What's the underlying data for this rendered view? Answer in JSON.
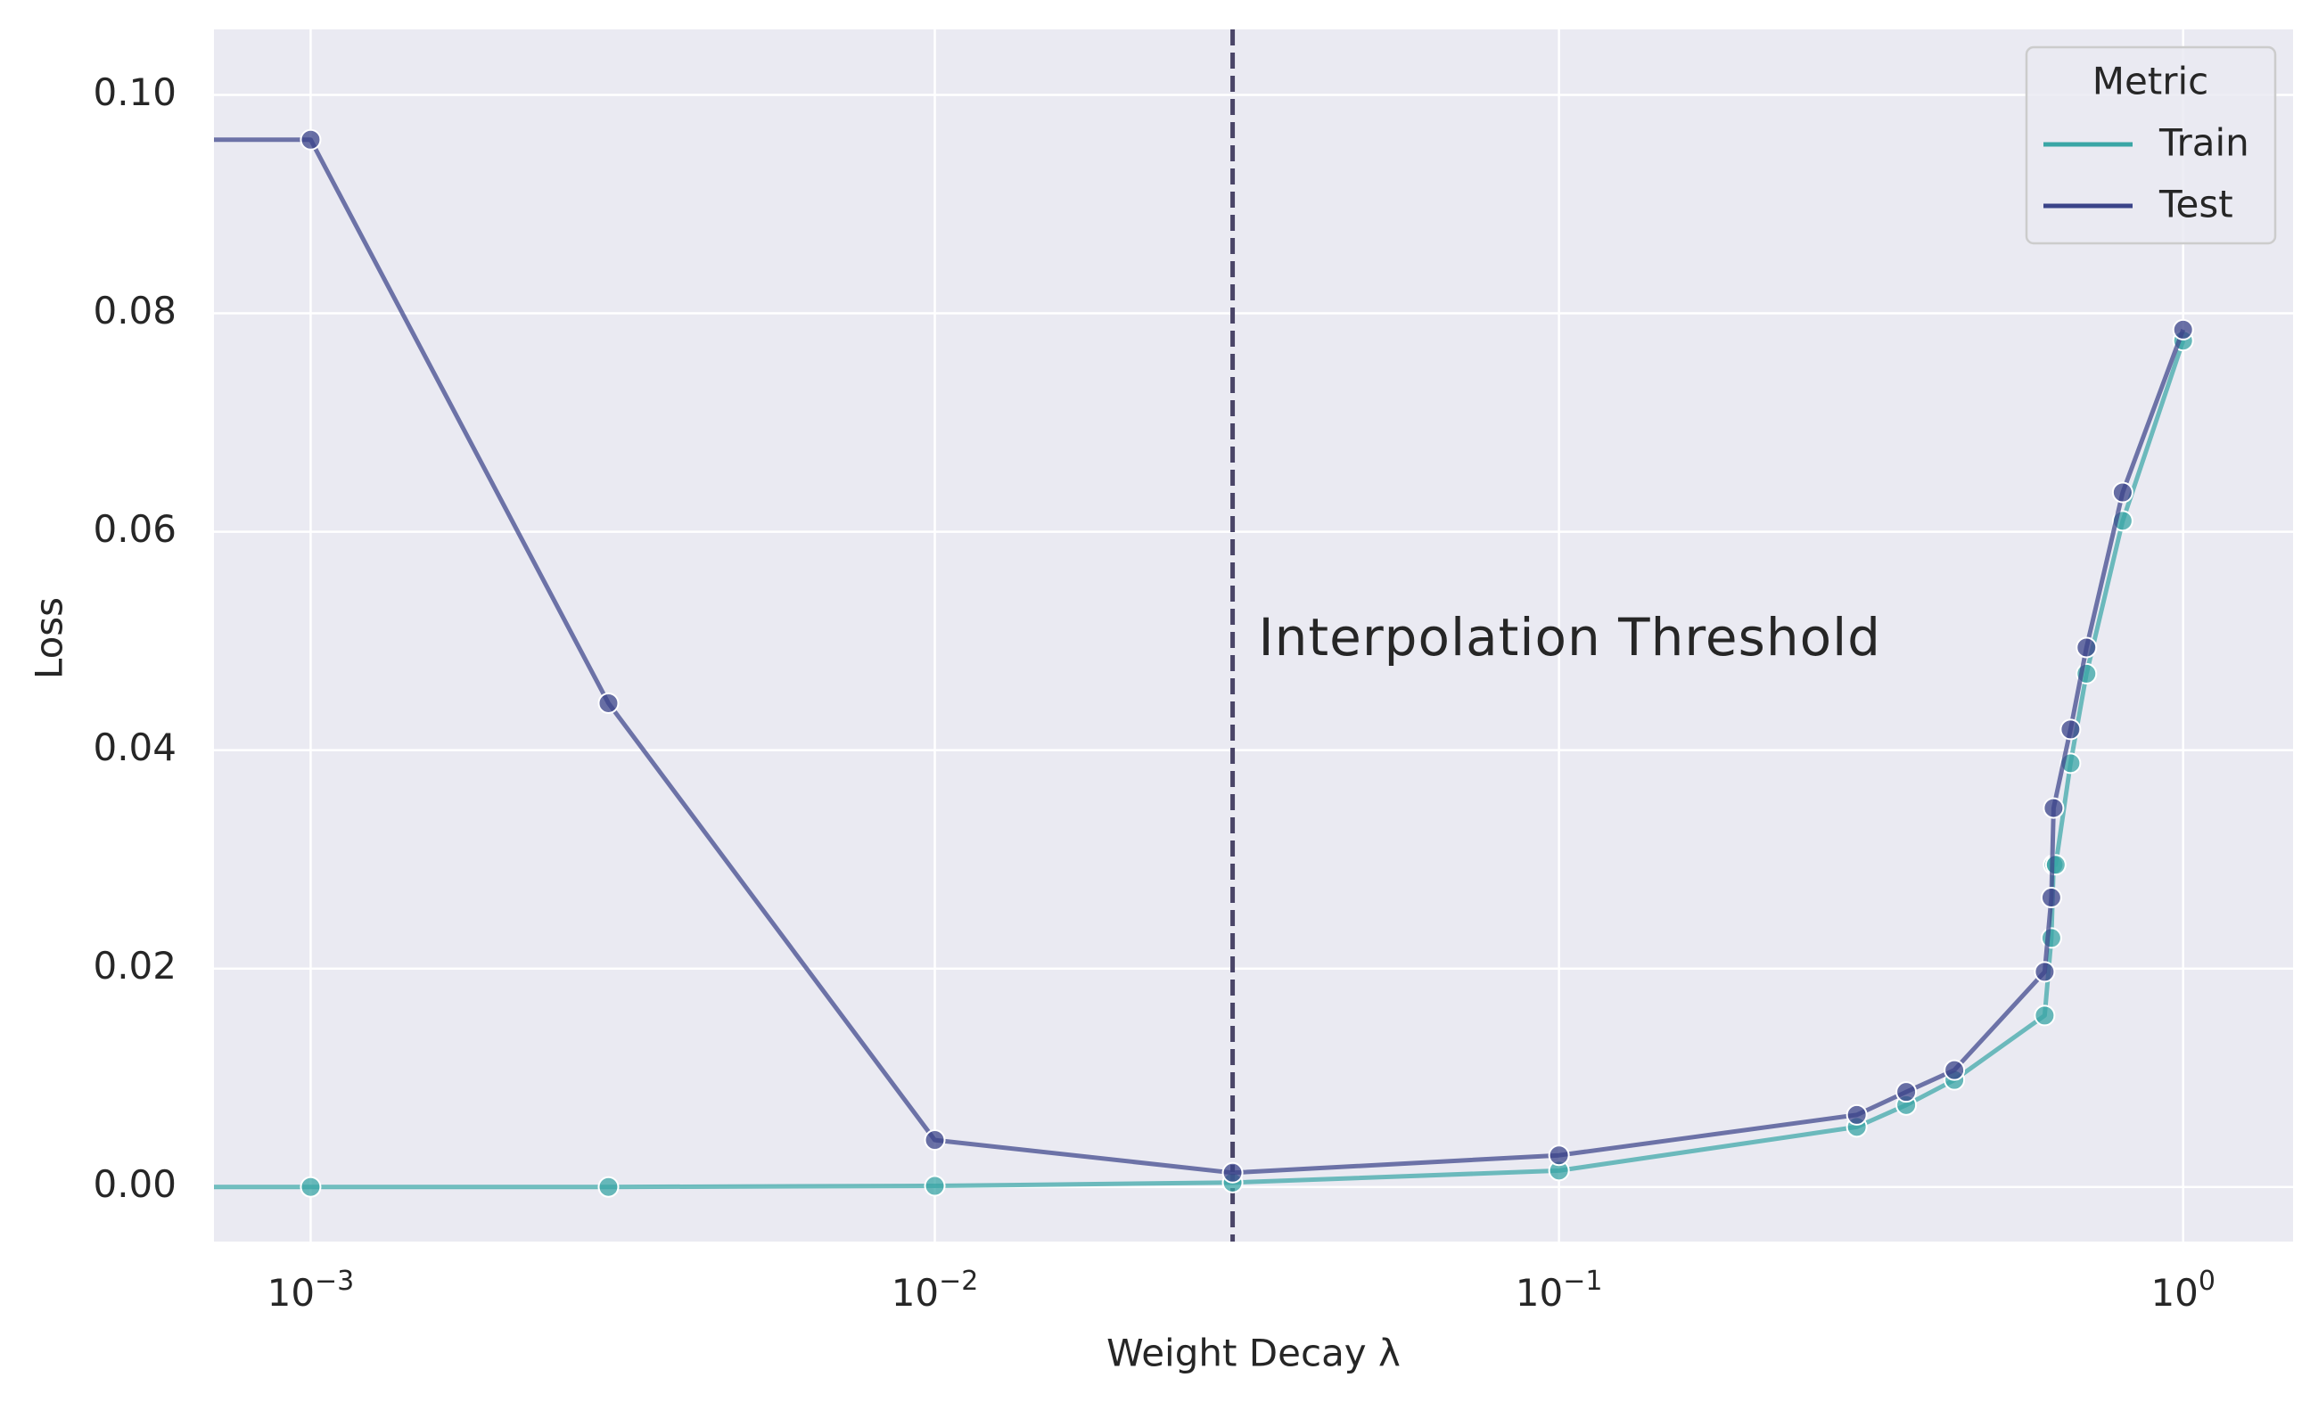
{
  "chart_data": {
    "type": "line",
    "title": "",
    "xlabel": "Weight Decay λ",
    "ylabel": "Loss",
    "x_scale": "log",
    "xlim": [
      0.0007,
      1.5
    ],
    "ylim": [
      -0.005,
      0.106
    ],
    "xticks": [
      {
        "value": 0.001,
        "base": "10",
        "exp": "−3"
      },
      {
        "value": 0.01,
        "base": "10",
        "exp": "−2"
      },
      {
        "value": 0.1,
        "base": "10",
        "exp": "−1"
      },
      {
        "value": 1,
        "base": "10",
        "exp": "0"
      }
    ],
    "yticks": [
      {
        "value": 0.0,
        "label": "0.00"
      },
      {
        "value": 0.02,
        "label": "0.02"
      },
      {
        "value": 0.04,
        "label": "0.04"
      },
      {
        "value": 0.06,
        "label": "0.06"
      },
      {
        "value": 0.08,
        "label": "0.08"
      },
      {
        "value": 0.1,
        "label": "0.10"
      }
    ],
    "grid": true,
    "legend": {
      "title": "Metric",
      "placement": "top-right"
    },
    "series": [
      {
        "name": "Train",
        "color": "#3aa6a6",
        "x": [
          0.0007,
          0.001,
          0.003,
          0.01,
          0.03,
          0.1,
          0.3,
          0.36,
          0.43,
          0.6,
          0.615,
          0.62,
          0.625,
          0.66,
          0.7,
          0.8,
          1.0
        ],
        "y": [
          0.0,
          0.0,
          0.0,
          0.0001,
          0.0004,
          0.0015,
          0.0055,
          0.0075,
          0.0098,
          0.0157,
          0.0228,
          0.0295,
          0.0295,
          0.0388,
          0.047,
          0.061,
          0.0775
        ],
        "markers": [
          false,
          true,
          true,
          true,
          true,
          true,
          true,
          true,
          true,
          true,
          true,
          true,
          true,
          true,
          true,
          true,
          true
        ]
      },
      {
        "name": "Test",
        "color": "#3b4489",
        "x": [
          0.0007,
          0.001,
          0.003,
          0.01,
          0.03,
          0.1,
          0.3,
          0.36,
          0.43,
          0.6,
          0.615,
          0.62,
          0.66,
          0.7,
          0.8,
          1.0
        ],
        "y": [
          0.0959,
          0.0959,
          0.0443,
          0.0043,
          0.0013,
          0.0029,
          0.0066,
          0.0087,
          0.0107,
          0.0197,
          0.0265,
          0.0347,
          0.0419,
          0.0494,
          0.0636,
          0.0785
        ],
        "markers": [
          false,
          true,
          true,
          true,
          true,
          true,
          true,
          true,
          true,
          true,
          true,
          true,
          true,
          true,
          true,
          true
        ]
      }
    ],
    "annotations": [
      {
        "type": "vline",
        "x": 0.03,
        "color": "#4a4568",
        "style": "dashed"
      },
      {
        "type": "text",
        "text": "Interpolation Threshold",
        "x": 0.033,
        "y": 0.05
      }
    ]
  }
}
